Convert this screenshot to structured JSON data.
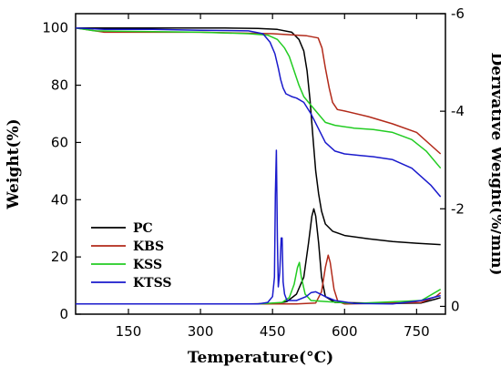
{
  "chart_data": {
    "type": "line",
    "xlabel": "Temperature(°C)",
    "ylabel": "Weight(%)",
    "y2label": "Derivative Weight(%/min)",
    "xlim": [
      40,
      810
    ],
    "ylim": [
      0,
      105
    ],
    "y2lim": [
      0.16,
      -6.0
    ],
    "xticks": [
      150,
      300,
      450,
      600,
      750
    ],
    "yticks": [
      0,
      20,
      40,
      60,
      80,
      100
    ],
    "y2ticks": [
      0,
      -2,
      -4,
      -6
    ],
    "legend_position": "center-left",
    "series": [
      {
        "name": "PC",
        "color": "#000000",
        "weight": [
          [
            40,
            100
          ],
          [
            200,
            100
          ],
          [
            350,
            100
          ],
          [
            420,
            99.8
          ],
          [
            460,
            99.5
          ],
          [
            490,
            98.5
          ],
          [
            505,
            96
          ],
          [
            515,
            92
          ],
          [
            522,
            85
          ],
          [
            528,
            75
          ],
          [
            534,
            62
          ],
          [
            540,
            50
          ],
          [
            546,
            42
          ],
          [
            552,
            36
          ],
          [
            560,
            31.5
          ],
          [
            575,
            29
          ],
          [
            600,
            27.5
          ],
          [
            650,
            26.3
          ],
          [
            700,
            25.4
          ],
          [
            750,
            24.8
          ],
          [
            800,
            24.3
          ]
        ],
        "deriv": [
          [
            40,
            -0.05
          ],
          [
            400,
            -0.05
          ],
          [
            460,
            -0.06
          ],
          [
            480,
            -0.1
          ],
          [
            500,
            -0.25
          ],
          [
            515,
            -0.6
          ],
          [
            525,
            -1.3
          ],
          [
            532,
            -1.85
          ],
          [
            536,
            -2.0
          ],
          [
            540,
            -1.85
          ],
          [
            546,
            -1.3
          ],
          [
            552,
            -0.6
          ],
          [
            560,
            -0.2
          ],
          [
            580,
            -0.08
          ],
          [
            700,
            -0.06
          ],
          [
            760,
            -0.07
          ],
          [
            790,
            -0.15
          ],
          [
            800,
            -0.18
          ]
        ]
      },
      {
        "name": "KBS",
        "color": "#b22a1a",
        "weight": [
          [
            40,
            100
          ],
          [
            60,
            99.5
          ],
          [
            100,
            98.5
          ],
          [
            300,
            98.5
          ],
          [
            450,
            98
          ],
          [
            520,
            97.3
          ],
          [
            545,
            96.5
          ],
          [
            553,
            93
          ],
          [
            560,
            86
          ],
          [
            568,
            79
          ],
          [
            575,
            74
          ],
          [
            585,
            71.5
          ],
          [
            600,
            71
          ],
          [
            650,
            69
          ],
          [
            700,
            66.5
          ],
          [
            750,
            63.5
          ],
          [
            800,
            56
          ]
        ],
        "deriv": [
          [
            40,
            -0.05
          ],
          [
            500,
            -0.05
          ],
          [
            540,
            -0.07
          ],
          [
            552,
            -0.3
          ],
          [
            560,
            -0.8
          ],
          [
            566,
            -1.05
          ],
          [
            570,
            -0.9
          ],
          [
            578,
            -0.35
          ],
          [
            586,
            -0.1
          ],
          [
            600,
            -0.05
          ],
          [
            760,
            -0.08
          ],
          [
            790,
            -0.2
          ],
          [
            800,
            -0.28
          ]
        ]
      },
      {
        "name": "KSS",
        "color": "#22cc22",
        "weight": [
          [
            40,
            100
          ],
          [
            80,
            99
          ],
          [
            300,
            98.5
          ],
          [
            400,
            98
          ],
          [
            440,
            97.5
          ],
          [
            460,
            96
          ],
          [
            475,
            93
          ],
          [
            485,
            90
          ],
          [
            495,
            85
          ],
          [
            505,
            80
          ],
          [
            515,
            76
          ],
          [
            530,
            73
          ],
          [
            545,
            70
          ],
          [
            560,
            67
          ],
          [
            580,
            66
          ],
          [
            620,
            65
          ],
          [
            660,
            64.5
          ],
          [
            700,
            63.5
          ],
          [
            740,
            61
          ],
          [
            770,
            57
          ],
          [
            800,
            51
          ]
        ],
        "deriv": [
          [
            40,
            -0.05
          ],
          [
            420,
            -0.05
          ],
          [
            470,
            -0.08
          ],
          [
            485,
            -0.18
          ],
          [
            495,
            -0.45
          ],
          [
            502,
            -0.8
          ],
          [
            506,
            -0.9
          ],
          [
            510,
            -0.6
          ],
          [
            518,
            -0.25
          ],
          [
            530,
            -0.12
          ],
          [
            560,
            -0.1
          ],
          [
            620,
            -0.06
          ],
          [
            760,
            -0.12
          ],
          [
            800,
            -0.35
          ]
        ]
      },
      {
        "name": "KTSS",
        "color": "#1a1acc",
        "weight": [
          [
            40,
            100
          ],
          [
            100,
            99.5
          ],
          [
            200,
            99.5
          ],
          [
            300,
            99.2
          ],
          [
            400,
            99
          ],
          [
            430,
            98
          ],
          [
            445,
            95
          ],
          [
            455,
            91
          ],
          [
            462,
            86
          ],
          [
            467,
            82
          ],
          [
            472,
            79
          ],
          [
            478,
            77
          ],
          [
            490,
            76
          ],
          [
            500,
            75.5
          ],
          [
            515,
            74
          ],
          [
            530,
            70
          ],
          [
            545,
            65
          ],
          [
            560,
            60
          ],
          [
            580,
            57
          ],
          [
            600,
            56
          ],
          [
            630,
            55.5
          ],
          [
            660,
            55
          ],
          [
            700,
            54
          ],
          [
            740,
            51
          ],
          [
            780,
            45
          ],
          [
            800,
            41
          ]
        ],
        "deriv": [
          [
            40,
            -0.05
          ],
          [
            420,
            -0.05
          ],
          [
            440,
            -0.08
          ],
          [
            450,
            -0.2
          ],
          [
            454,
            -0.6
          ],
          [
            456,
            -2.3
          ],
          [
            458,
            -3.2
          ],
          [
            460,
            -1.4
          ],
          [
            462,
            -0.4
          ],
          [
            465,
            -0.7
          ],
          [
            468,
            -1.4
          ],
          [
            470,
            -1.4
          ],
          [
            472,
            -0.5
          ],
          [
            475,
            -0.25
          ],
          [
            480,
            -0.12
          ],
          [
            500,
            -0.12
          ],
          [
            520,
            -0.2
          ],
          [
            530,
            -0.28
          ],
          [
            540,
            -0.3
          ],
          [
            560,
            -0.2
          ],
          [
            580,
            -0.12
          ],
          [
            620,
            -0.06
          ],
          [
            700,
            -0.05
          ],
          [
            760,
            -0.12
          ],
          [
            800,
            -0.22
          ]
        ]
      }
    ]
  }
}
